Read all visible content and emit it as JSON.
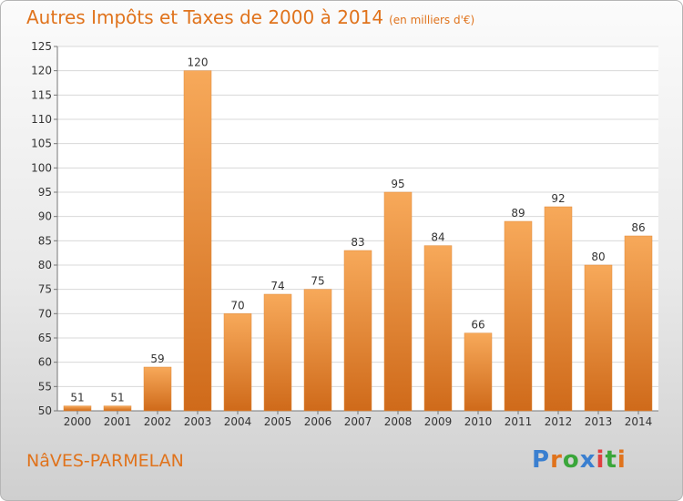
{
  "title": "Autres Impôts et Taxes de 2000 à 2014",
  "subtitle": "(en milliers d'€)",
  "commune": "NâVES-PARMELAN",
  "logo": {
    "text": "Proxiti",
    "colors": [
      "#3a7fd0",
      "#e0731c",
      "#3aa63a",
      "#3a7fd0",
      "#e04040",
      "#3aa63a",
      "#e0731c"
    ]
  },
  "colors": {
    "accent": "#e0731c",
    "bar_top": "#f7a95a",
    "bar_bottom": "#cf6a1a",
    "grid": "#d8d8d8",
    "axis": "#777777"
  },
  "chart_data": {
    "type": "bar",
    "title": "Autres Impôts et Taxes de 2000 à 2014",
    "subtitle": "(en milliers d'€)",
    "categories": [
      "2000",
      "2001",
      "2002",
      "2003",
      "2004",
      "2005",
      "2006",
      "2007",
      "2008",
      "2009",
      "2010",
      "2011",
      "2012",
      "2013",
      "2014"
    ],
    "values": [
      51,
      51,
      59,
      120,
      70,
      74,
      75,
      83,
      95,
      84,
      66,
      89,
      92,
      80,
      86
    ],
    "ylim": [
      50,
      125
    ],
    "yticks": [
      50,
      55,
      60,
      65,
      70,
      75,
      80,
      85,
      90,
      95,
      100,
      105,
      110,
      115,
      120,
      125
    ],
    "grid": true,
    "data_labels": true
  }
}
